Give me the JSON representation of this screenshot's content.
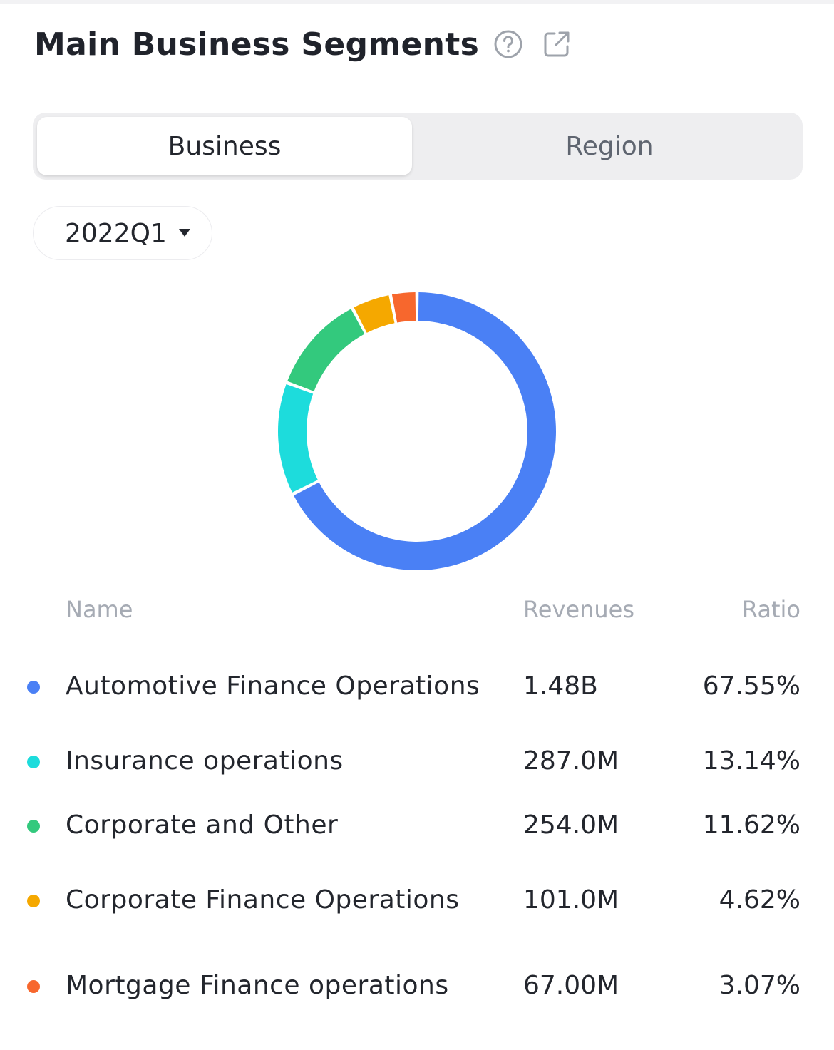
{
  "header": {
    "title": "Main Business Segments",
    "icons": [
      "help-circle-icon",
      "external-link-icon"
    ]
  },
  "tabs": {
    "items": [
      {
        "label": "Business",
        "active": true
      },
      {
        "label": "Region",
        "active": false
      }
    ]
  },
  "period_selector": {
    "value": "2022Q1",
    "icon": "caret-down-icon"
  },
  "table": {
    "headers": {
      "name": "Name",
      "revenues": "Revenues",
      "ratio": "Ratio"
    },
    "rows": [
      {
        "name": "Automotive Finance Operations",
        "revenues": "1.48B",
        "ratio": "67.55%",
        "color": "#4A80F5"
      },
      {
        "name": "Insurance operations",
        "revenues": "287.0M",
        "ratio": "13.14%",
        "color": "#1DDCDC"
      },
      {
        "name": "Corporate and Other",
        "revenues": "254.0M",
        "ratio": "11.62%",
        "color": "#33C97D"
      },
      {
        "name": "Corporate Finance Operations",
        "revenues": "101.0M",
        "ratio": "4.62%",
        "color": "#F5A800"
      },
      {
        "name": "Mortgage Finance operations",
        "revenues": "67.00M",
        "ratio": "3.07%",
        "color": "#F7672D"
      }
    ]
  },
  "chart_data": {
    "type": "pie",
    "variant": "donut",
    "categories": [
      "Automotive Finance Operations",
      "Insurance operations",
      "Corporate and Other",
      "Corporate Finance Operations",
      "Mortgage Finance operations"
    ],
    "values": [
      67.55,
      13.14,
      11.62,
      4.62,
      3.07
    ],
    "colors": [
      "#4A80F5",
      "#1DDCDC",
      "#33C97D",
      "#F5A800",
      "#F7672D"
    ],
    "direction": "clockwise",
    "start": "top"
  }
}
